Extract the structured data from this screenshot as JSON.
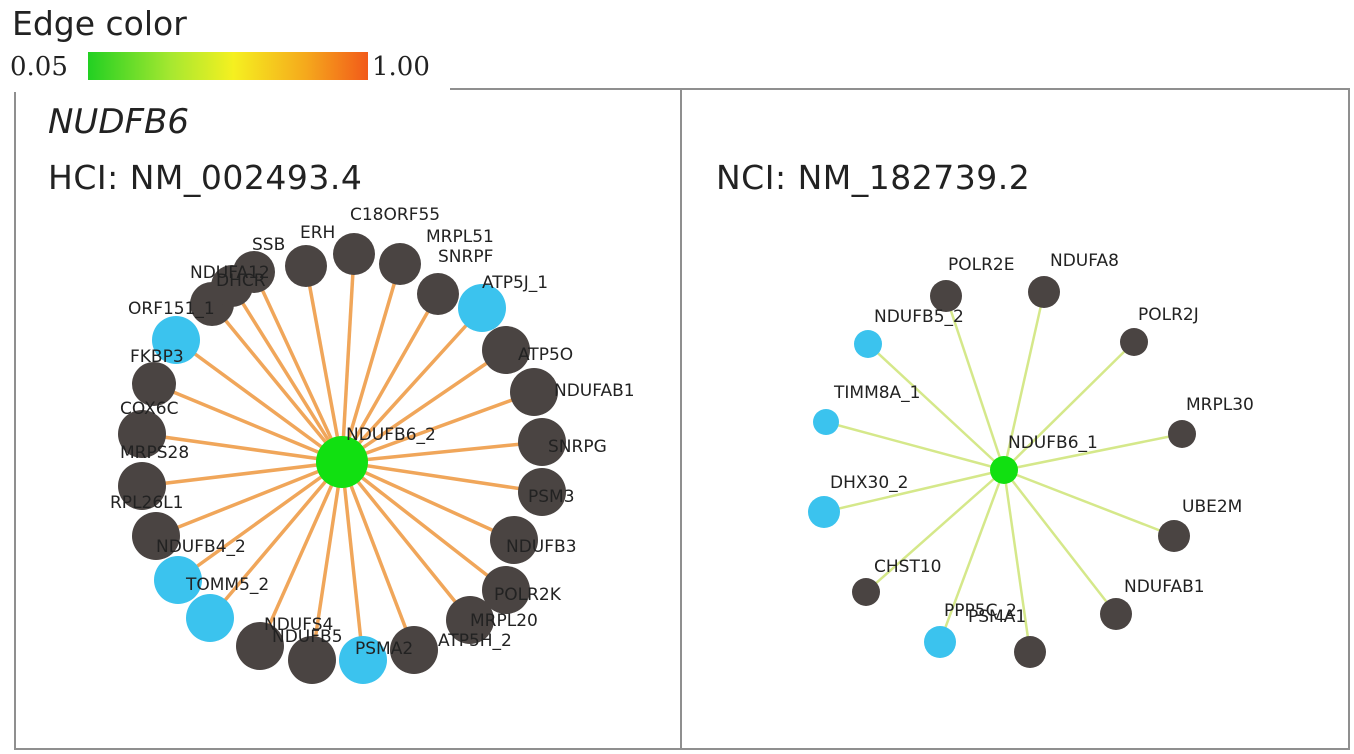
{
  "legend": {
    "title": "Edge color",
    "min_label": "0.05",
    "max_label": "1.00",
    "gradient_colors": [
      "#22d022",
      "#f5f020",
      "#f25a1a"
    ]
  },
  "colors": {
    "hub_node": "#11e011",
    "gray_node": "#4a4442",
    "blue_node": "#3bc3ee",
    "left_edge": "#f0a65a",
    "right_edge": "#d5e88a"
  },
  "left_panel": {
    "gene": "NUDFB6",
    "transcript": "HCI: NM_002493.4",
    "hub": "NDUFB6_2",
    "nodes": [
      {
        "label": "SSB",
        "type": "gray"
      },
      {
        "label": "ERH",
        "type": "gray"
      },
      {
        "label": "C18ORF55",
        "type": "gray"
      },
      {
        "label": "MRPL51",
        "type": "gray"
      },
      {
        "label": "SNRPF",
        "type": "gray"
      },
      {
        "label": "ATP5J_1",
        "type": "blue"
      },
      {
        "label": "ATP5O",
        "type": "gray"
      },
      {
        "label": "NDUFAB1",
        "type": "gray"
      },
      {
        "label": "SNRPG",
        "type": "gray"
      },
      {
        "label": "PSM3",
        "type": "gray"
      },
      {
        "label": "NDUFB3",
        "type": "gray"
      },
      {
        "label": "POLR2K",
        "type": "gray"
      },
      {
        "label": "MRPL20",
        "type": "gray"
      },
      {
        "label": "ATP5H_2",
        "type": "gray"
      },
      {
        "label": "PSMA2",
        "type": "blue"
      },
      {
        "label": "NDUFB5",
        "type": "gray"
      },
      {
        "label": "NDUFS4",
        "type": "gray"
      },
      {
        "label": "TOMM5_2",
        "type": "blue"
      },
      {
        "label": "NDUFB4_2",
        "type": "blue"
      },
      {
        "label": "RPL26L1",
        "type": "gray"
      },
      {
        "label": "MRPS28",
        "type": "gray"
      },
      {
        "label": "COX6C",
        "type": "gray"
      },
      {
        "label": "FKBP3",
        "type": "gray"
      },
      {
        "label": "ORF151_1",
        "type": "blue"
      },
      {
        "label": "NDUFA12",
        "type": "gray"
      },
      {
        "label": "DHCR",
        "type": "gray"
      }
    ]
  },
  "right_panel": {
    "transcript": "NCI: NM_182739.2",
    "hub": "NDUFB6_1",
    "nodes": [
      {
        "label": "POLR2E",
        "type": "gray"
      },
      {
        "label": "NDUFA8",
        "type": "gray"
      },
      {
        "label": "POLR2J",
        "type": "gray"
      },
      {
        "label": "MRPL30",
        "type": "gray"
      },
      {
        "label": "UBE2M",
        "type": "gray"
      },
      {
        "label": "NDUFAB1",
        "type": "gray"
      },
      {
        "label": "PSMA1",
        "type": "gray"
      },
      {
        "label": "PPP5C_2",
        "type": "blue"
      },
      {
        "label": "CHST10",
        "type": "gray"
      },
      {
        "label": "DHX30_2",
        "type": "blue"
      },
      {
        "label": "TIMM8A_1",
        "type": "blue"
      },
      {
        "label": "NDUFB5_2",
        "type": "blue"
      }
    ]
  }
}
